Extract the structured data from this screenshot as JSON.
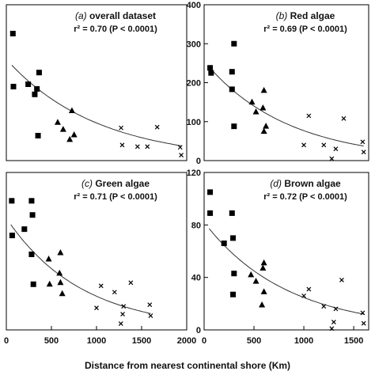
{
  "figure": {
    "xlabel": "Distance from nearest continental shore (Km)"
  },
  "chart_data": [
    {
      "type": "scatter",
      "panel": "a",
      "title_letter": "(a)",
      "title": "overall dataset",
      "r2_text": "r² = 0.70 (P < 0.0001)",
      "xlim": [
        0,
        1650
      ],
      "ylim": [
        0,
        200
      ],
      "xticks": [],
      "yticks": [],
      "grid": false,
      "series": [
        {
          "marker": "square",
          "points": [
            [
              60,
              163
            ],
            [
              65,
              95
            ],
            [
              200,
              98
            ],
            [
              260,
              85
            ],
            [
              280,
              92
            ],
            [
              300,
              113
            ],
            [
              290,
              32
            ]
          ]
        },
        {
          "marker": "triangle",
          "points": [
            [
              470,
              49
            ],
            [
              520,
              40
            ],
            [
              600,
              64
            ],
            [
              580,
              27
            ],
            [
              620,
              33
            ]
          ]
        },
        {
          "marker": "cross",
          "points": [
            [
              1050,
              42
            ],
            [
              1060,
              20
            ],
            [
              1200,
              18
            ],
            [
              1290,
              18
            ],
            [
              1380,
              43
            ],
            [
              1590,
              17
            ],
            [
              1600,
              7
            ]
          ]
        }
      ],
      "fit": {
        "y0": 130,
        "k": 0.0012
      }
    },
    {
      "type": "scatter",
      "panel": "b",
      "title_letter": "(b)",
      "title": "Red algae",
      "r2_text": "r² = 0.69 (P < 0.0001)",
      "xlim": [
        0,
        1650
      ],
      "ylim": [
        0,
        400
      ],
      "xticks": [],
      "yticks": [
        "0",
        "100",
        "200",
        "300",
        "400"
      ],
      "grid": false,
      "series": [
        {
          "marker": "square",
          "points": [
            [
              60,
              238
            ],
            [
              70,
              225
            ],
            [
              280,
              228
            ],
            [
              300,
              300
            ],
            [
              280,
              183
            ],
            [
              300,
              88
            ]
          ]
        },
        {
          "marker": "triangle",
          "points": [
            [
              480,
              150
            ],
            [
              520,
              125
            ],
            [
              600,
              180
            ],
            [
              590,
              135
            ],
            [
              600,
              75
            ],
            [
              620,
              88
            ]
          ]
        },
        {
          "marker": "cross",
          "points": [
            [
              1050,
              115
            ],
            [
              1000,
              40
            ],
            [
              1200,
              40
            ],
            [
              1280,
              5
            ],
            [
              1320,
              30
            ],
            [
              1400,
              108
            ],
            [
              1590,
              48
            ],
            [
              1600,
              22
            ]
          ]
        }
      ],
      "fit": {
        "y0": 255,
        "k": 0.0012
      }
    },
    {
      "type": "scatter",
      "panel": "c",
      "title_letter": "(c)",
      "title": "Green algae",
      "r2_text": "r² = 0.71 (P < 0.0001)",
      "xlim": [
        0,
        2000
      ],
      "ylim": [
        0,
        100
      ],
      "xticks": [
        "0",
        "500",
        "1000",
        "1500",
        "2000"
      ],
      "yticks": [],
      "grid": false,
      "series": [
        {
          "marker": "square",
          "points": [
            [
              60,
              82
            ],
            [
              65,
              60
            ],
            [
              200,
              64
            ],
            [
              280,
              82
            ],
            [
              290,
              73
            ],
            [
              300,
              29
            ],
            [
              280,
              48
            ]
          ]
        },
        {
          "marker": "triangle",
          "points": [
            [
              470,
              45
            ],
            [
              480,
              29
            ],
            [
              600,
              49
            ],
            [
              590,
              36
            ],
            [
              600,
              30
            ],
            [
              620,
              23
            ]
          ]
        },
        {
          "marker": "cross",
          "points": [
            [
              1050,
              28
            ],
            [
              1000,
              14
            ],
            [
              1200,
              24
            ],
            [
              1300,
              15
            ],
            [
              1270,
              4
            ],
            [
              1290,
              10
            ],
            [
              1380,
              30
            ],
            [
              1590,
              16
            ],
            [
              1600,
              9
            ]
          ]
        }
      ],
      "fit": {
        "y0": 71,
        "k": 0.0012
      }
    },
    {
      "type": "scatter",
      "panel": "d",
      "title_letter": "(d)",
      "title": "Brown algae",
      "r2_text": "r² = 0.72 (P < 0.0001)",
      "xlim": [
        0,
        1650
      ],
      "ylim": [
        0,
        120
      ],
      "xticks": [
        "0",
        "500",
        "1000",
        "1500"
      ],
      "yticks": [
        "0",
        "40",
        "80",
        "120"
      ],
      "grid": false,
      "series": [
        {
          "marker": "square",
          "points": [
            [
              60,
              105
            ],
            [
              60,
              89
            ],
            [
              200,
              66
            ],
            [
              280,
              89
            ],
            [
              290,
              70
            ],
            [
              300,
              43
            ],
            [
              290,
              27
            ]
          ]
        },
        {
          "marker": "triangle",
          "points": [
            [
              470,
              42
            ],
            [
              520,
              37
            ],
            [
              600,
              51
            ],
            [
              590,
              47
            ],
            [
              600,
              29
            ],
            [
              580,
              19
            ]
          ]
        },
        {
          "marker": "cross",
          "points": [
            [
              1050,
              31
            ],
            [
              1000,
              26
            ],
            [
              1200,
              18
            ],
            [
              1280,
              1
            ],
            [
              1300,
              6
            ],
            [
              1320,
              16
            ],
            [
              1380,
              38
            ],
            [
              1590,
              13
            ],
            [
              1600,
              5
            ]
          ]
        }
      ],
      "fit": {
        "y0": 82,
        "k": 0.0012
      }
    }
  ]
}
